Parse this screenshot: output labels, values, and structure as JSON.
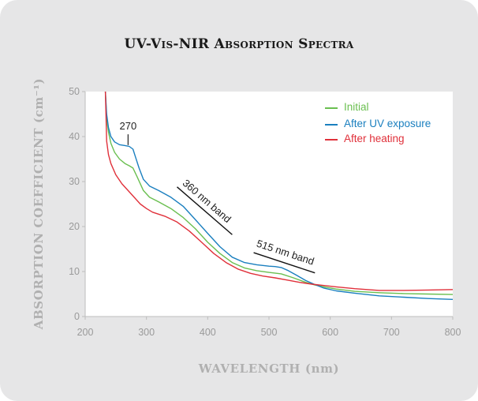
{
  "title": "UV-Vis-NIR Absorption Spectra",
  "chart_data": {
    "type": "line",
    "xlabel": "WAVELENGTH (nm)",
    "ylabel": "ABSORPTION COEFFICIENT (cm⁻¹)",
    "xlim": [
      200,
      800
    ],
    "ylim": [
      0,
      50
    ],
    "xticks": [
      200,
      300,
      400,
      500,
      600,
      700,
      800
    ],
    "yticks": [
      0,
      10,
      20,
      30,
      40,
      50
    ],
    "grid": false,
    "legend_position": "top-right",
    "series": [
      {
        "name": "Initial",
        "color": "#6abf50",
        "x": [
          233,
          235,
          238,
          242,
          248,
          256,
          265,
          272,
          278,
          285,
          295,
          305,
          320,
          340,
          360,
          380,
          400,
          420,
          440,
          460,
          480,
          500,
          520,
          540,
          560,
          575,
          590,
          610,
          640,
          680,
          720,
          760,
          800
        ],
        "y": [
          50,
          44,
          41,
          38.5,
          36.5,
          35,
          34,
          33.5,
          33,
          31,
          28,
          26.5,
          25.5,
          24,
          22,
          19.5,
          16.5,
          14,
          12,
          10.8,
          10.2,
          9.8,
          9.5,
          8.6,
          7.6,
          7.0,
          6.6,
          6.1,
          5.6,
          5.3,
          5.1,
          5.0,
          4.9
        ]
      },
      {
        "name": "After UV exposure",
        "color": "#1a7fbf",
        "x": [
          233,
          235,
          238,
          242,
          248,
          256,
          265,
          272,
          278,
          282,
          288,
          295,
          305,
          320,
          340,
          360,
          380,
          400,
          420,
          440,
          460,
          480,
          500,
          510,
          520,
          530,
          545,
          560,
          575,
          590,
          610,
          640,
          680,
          720,
          760,
          800
        ],
        "y": [
          50,
          45,
          42,
          40,
          38.8,
          38.2,
          38,
          37.8,
          37.2,
          35.5,
          33,
          30.5,
          29,
          28,
          26.5,
          24.5,
          21.5,
          18.5,
          15.5,
          13.2,
          12,
          11.5,
          11.2,
          11.1,
          10.9,
          10.3,
          9.2,
          8,
          7.1,
          6.3,
          5.7,
          5.2,
          4.6,
          4.3,
          4.0,
          3.8
        ]
      },
      {
        "name": "After heating",
        "color": "#e0303a",
        "x": [
          233,
          235,
          238,
          242,
          250,
          260,
          270,
          280,
          290,
          300,
          310,
          330,
          350,
          370,
          390,
          410,
          430,
          450,
          470,
          490,
          510,
          530,
          550,
          570,
          590,
          610,
          640,
          680,
          720,
          760,
          800
        ],
        "y": [
          50,
          39,
          36,
          34,
          31.5,
          29.5,
          28,
          26.5,
          25,
          24,
          23.2,
          22.3,
          21,
          19,
          16.5,
          14,
          12,
          10.5,
          9.6,
          9,
          8.6,
          8.1,
          7.6,
          7.2,
          6.9,
          6.6,
          6.2,
          5.8,
          5.8,
          5.9,
          6.0
        ]
      }
    ],
    "annotations": [
      {
        "text": "270",
        "x": 270
      },
      {
        "text": "360 nm band",
        "x_range": [
          350,
          440
        ]
      },
      {
        "text": "515 nm band",
        "x_range": [
          475,
          575
        ]
      }
    ]
  }
}
